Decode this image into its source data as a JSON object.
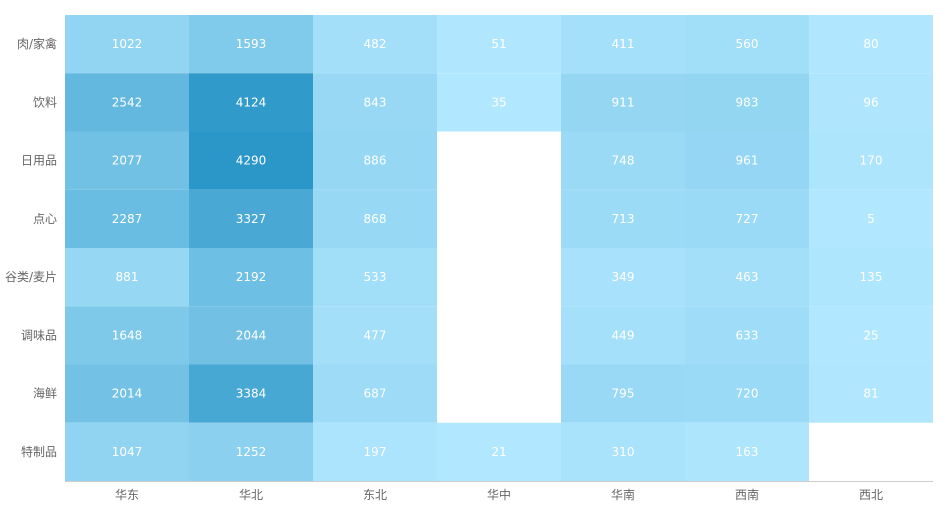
{
  "chart_data": {
    "type": "heatmap",
    "title": "",
    "xlabel": "",
    "ylabel": "",
    "x_categories": [
      "华东",
      "华北",
      "东北",
      "华中",
      "华南",
      "西南",
      "西北"
    ],
    "y_categories": [
      "肉/家禽",
      "饮料",
      "日用品",
      "点心",
      "谷类/麦片",
      "调味品",
      "海鲜",
      "特制品"
    ],
    "values": [
      [
        1022,
        1593,
        482,
        51,
        411,
        560,
        80
      ],
      [
        2542,
        4124,
        843,
        35,
        911,
        983,
        96
      ],
      [
        2077,
        4290,
        886,
        null,
        748,
        961,
        170
      ],
      [
        2287,
        3327,
        868,
        null,
        713,
        727,
        5
      ],
      [
        881,
        2192,
        533,
        null,
        349,
        463,
        135
      ],
      [
        1648,
        2044,
        477,
        null,
        449,
        633,
        25
      ],
      [
        2014,
        3384,
        687,
        null,
        795,
        720,
        81
      ],
      [
        1047,
        1252,
        197,
        21,
        310,
        163,
        null
      ]
    ],
    "color_range": [
      "#b2e8ff",
      "#2b97c8"
    ],
    "value_range": [
      5,
      4290
    ],
    "grid": false,
    "legend": "none"
  }
}
